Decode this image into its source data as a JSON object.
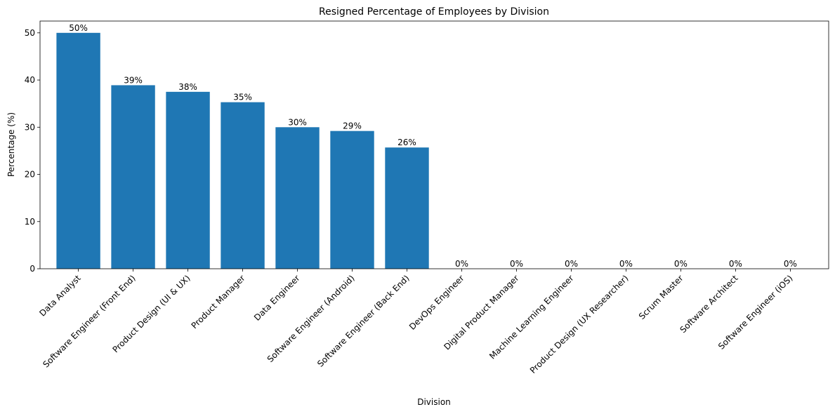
{
  "chart_data": {
    "type": "bar",
    "title": "Resigned Percentage of Employees by Division",
    "xlabel": "Division",
    "ylabel": "Percentage (%)",
    "ylim": [
      0,
      52.5
    ],
    "yticks": [
      0,
      10,
      20,
      30,
      40,
      50
    ],
    "grid": false,
    "bar_color": "#1f77b4",
    "categories": [
      "Data Analyst",
      "Software Engineer (Front End)",
      "Product Design (UI & UX)",
      "Product Manager",
      "Data Engineer",
      "Software Engineer (Android)",
      "Software Engineer (Back End)",
      "DevOps Engineer",
      "Digital Product Manager",
      "Machine Learning Engineer",
      "Product Design (UX Researcher)",
      "Scrum Master",
      "Software Architect",
      "Software Engineer (iOS)"
    ],
    "values": [
      50,
      38.9,
      37.5,
      35.3,
      30,
      29.2,
      25.7,
      0,
      0,
      0,
      0,
      0,
      0,
      0
    ],
    "data_labels": [
      "50%",
      "39%",
      "38%",
      "35%",
      "30%",
      "29%",
      "26%",
      "0%",
      "0%",
      "0%",
      "0%",
      "0%",
      "0%",
      "0%"
    ]
  }
}
